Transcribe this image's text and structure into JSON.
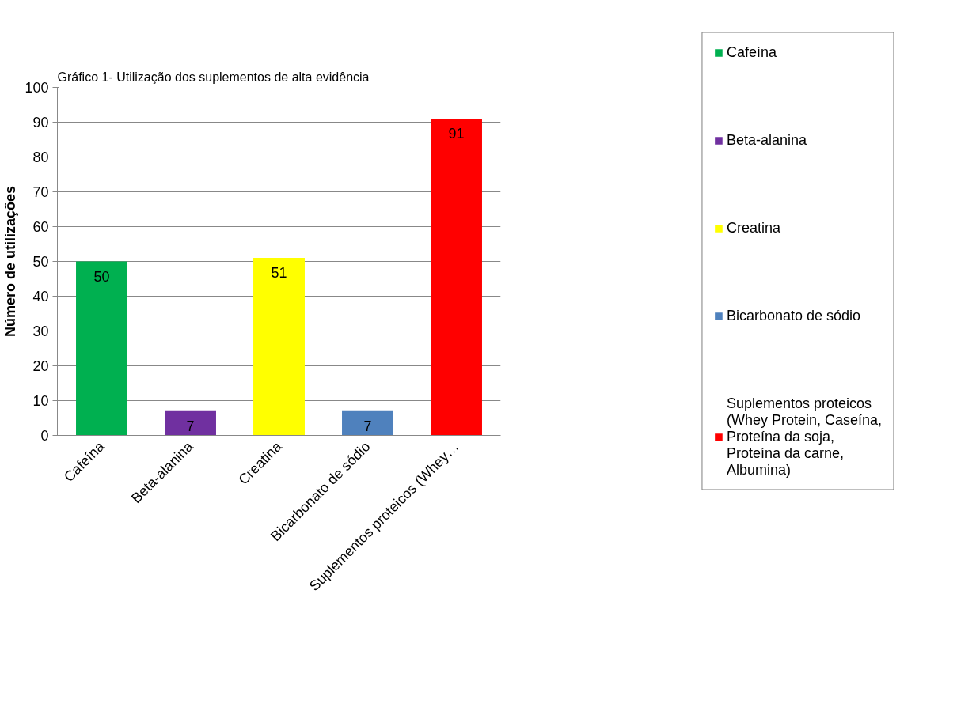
{
  "chart_data": {
    "type": "bar",
    "title": "Gráfico 1- Utilização dos suplementos de alta evidência",
    "ylabel": "Número de utilizações",
    "categories": [
      "Cafeína",
      "Beta-alanina",
      "Creatina",
      "Bicarbonato de sódio",
      "Suplementos proteicos (Whey…"
    ],
    "series": [
      {
        "name": "Cafeína",
        "color": "#00b050",
        "values": [
          50,
          null,
          null,
          null,
          null
        ]
      },
      {
        "name": "Beta-alanina",
        "color": "#7030a0",
        "values": [
          null,
          7,
          null,
          null,
          null
        ]
      },
      {
        "name": "Creatina",
        "color": "#ffff00",
        "values": [
          null,
          null,
          51,
          null,
          null
        ]
      },
      {
        "name": "Bicarbonato de sódio",
        "color": "#4f81bd",
        "values": [
          null,
          null,
          null,
          7,
          null
        ]
      },
      {
        "name": "Suplementos proteicos (Whey Protein, Caseína, Proteína da soja, Proteína da carne, Albumina)",
        "color": "#ff0000",
        "values": [
          null,
          null,
          null,
          null,
          91
        ]
      }
    ],
    "ylim": [
      0,
      100
    ],
    "yticks": [
      0,
      10,
      20,
      30,
      40,
      50,
      60,
      70,
      80,
      90,
      100
    ],
    "grid": "y",
    "legend": "right",
    "data_labels": true
  }
}
